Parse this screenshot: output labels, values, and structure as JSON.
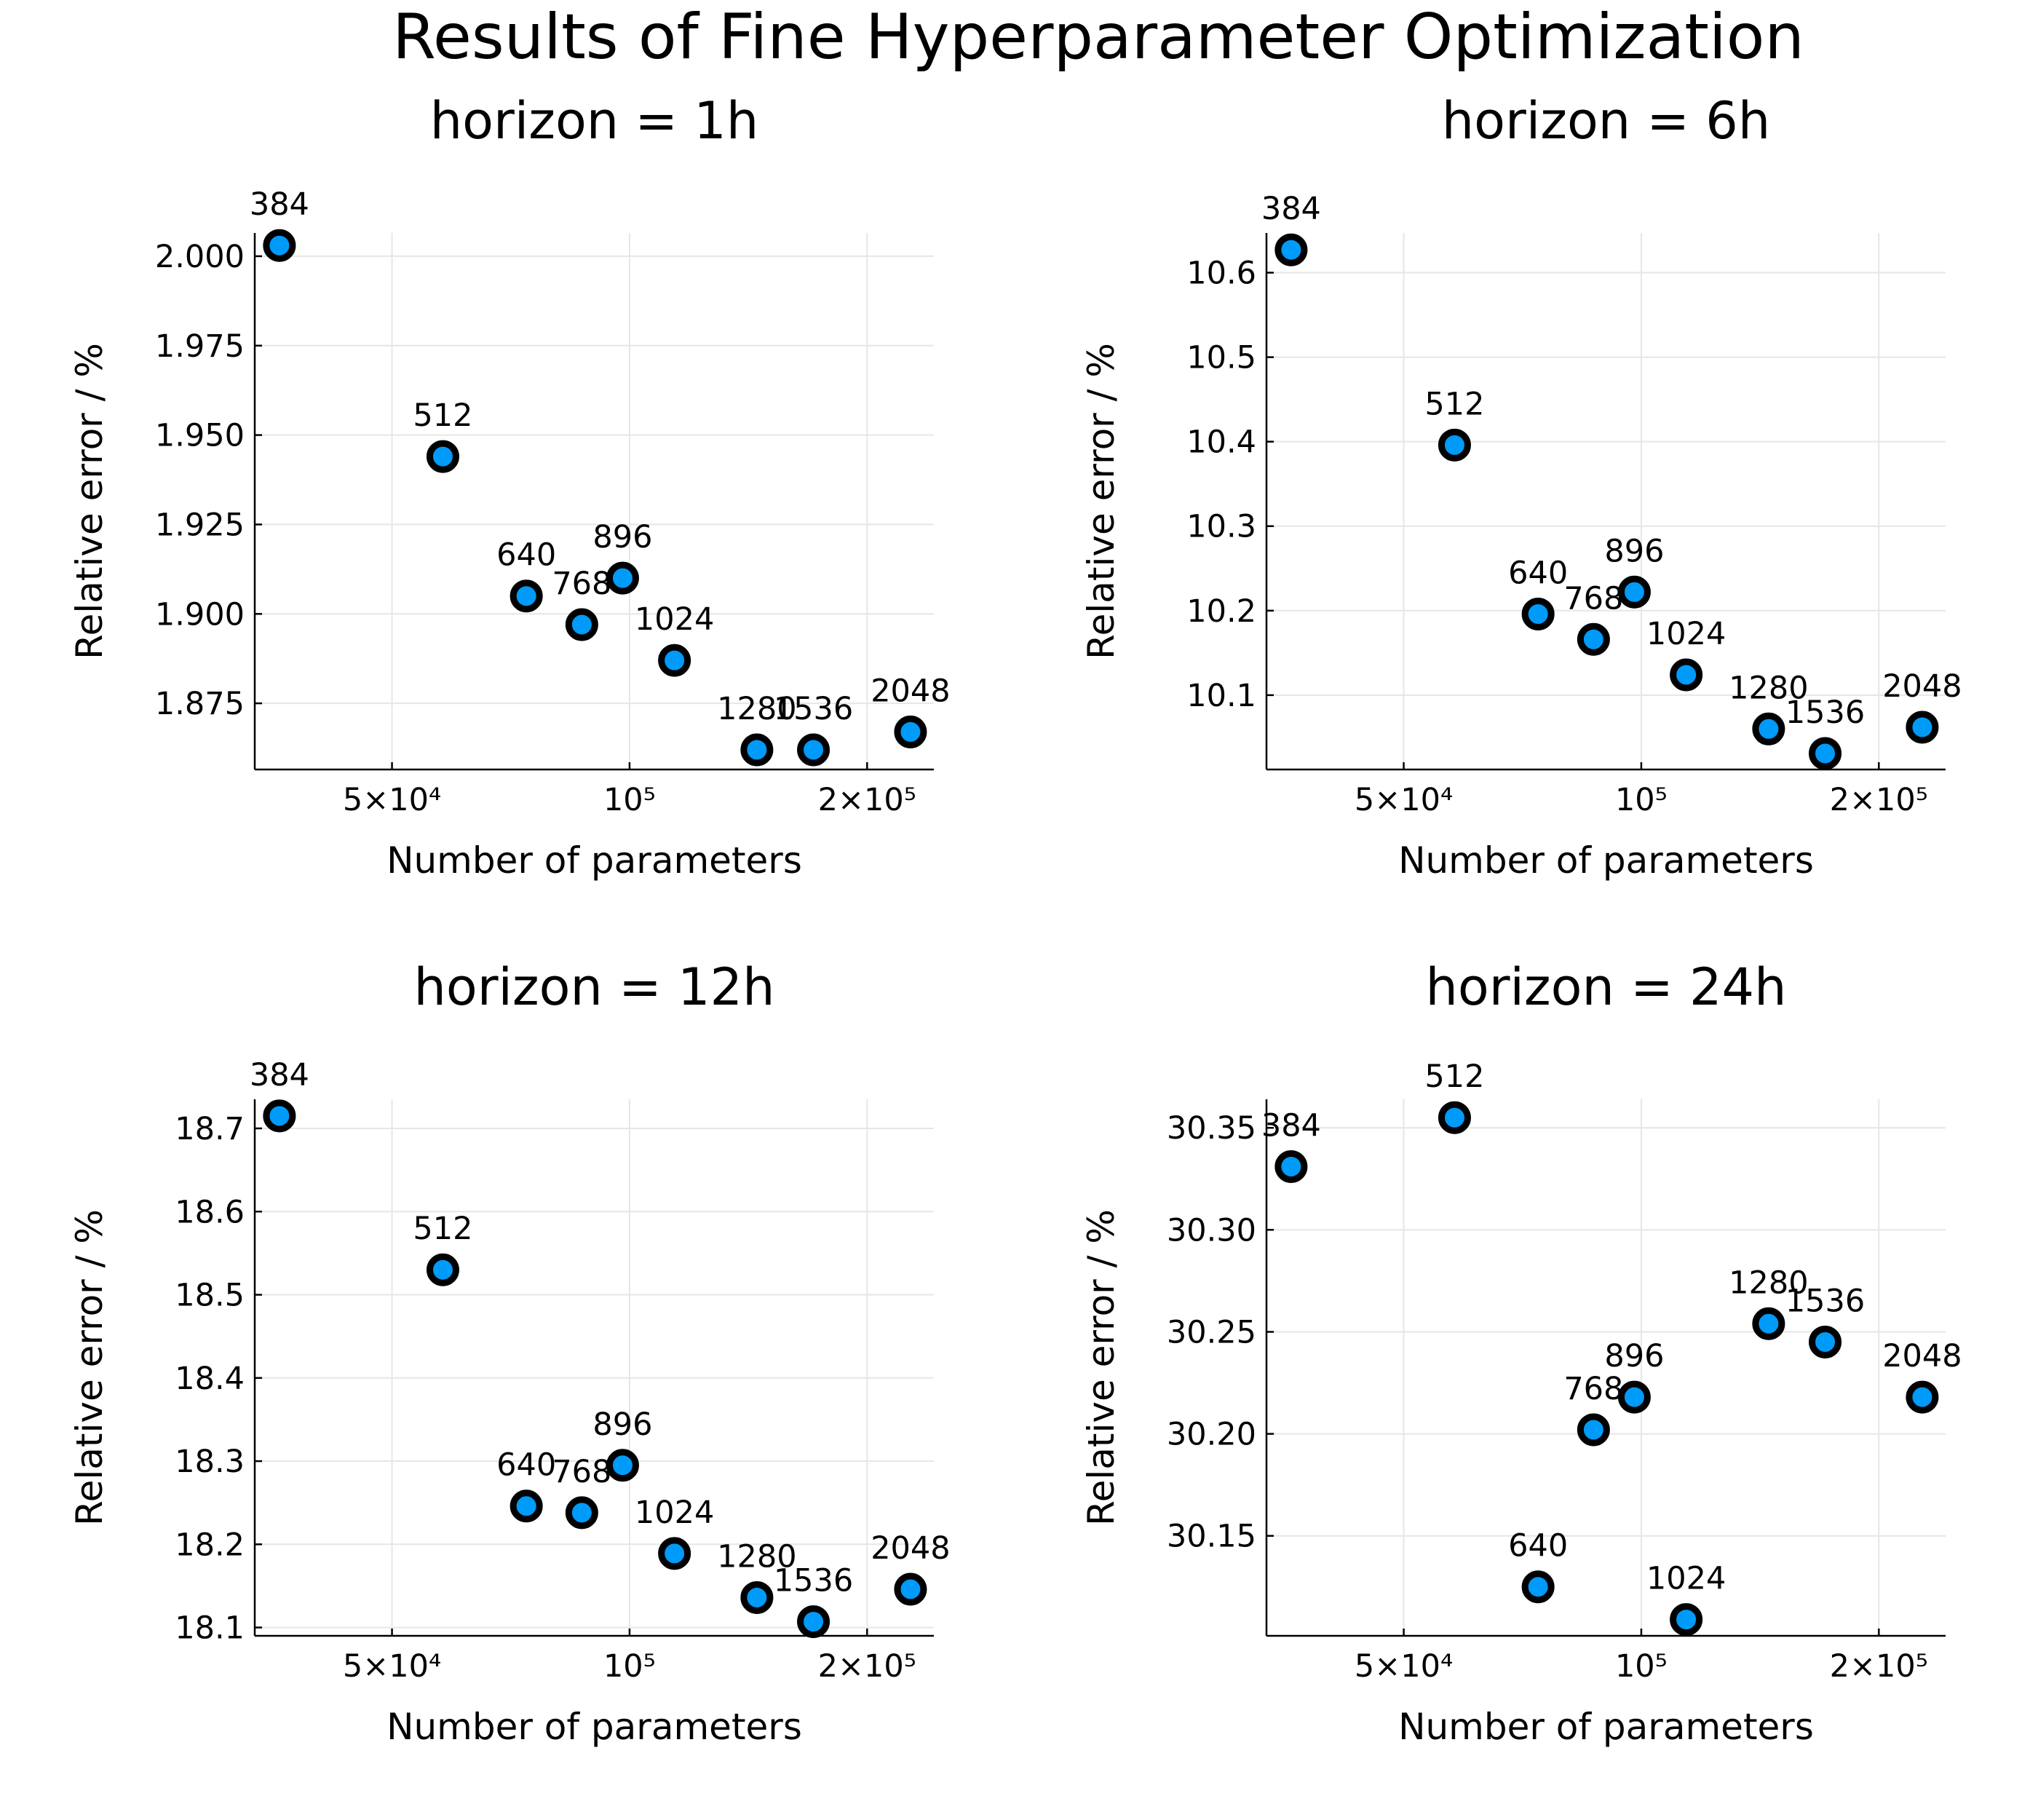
{
  "figure": {
    "title": "Results of Fine Hyperparameter Optimization"
  },
  "chart_data": [
    {
      "type": "scatter",
      "title": "horizon = 1h",
      "xlabel": "Number of parameters",
      "ylabel": "Relative error / %",
      "xscale": "log",
      "xlim": [
        33500,
        243000
      ],
      "ylim": [
        1.8565,
        2.0065
      ],
      "xticks": [
        {
          "value": 50000,
          "label": "5×10⁴"
        },
        {
          "value": 100000,
          "label": "10⁵"
        },
        {
          "value": 200000,
          "label": "2×10⁵"
        }
      ],
      "yticks": [
        {
          "value": 1.875,
          "label": "1.875"
        },
        {
          "value": 1.9,
          "label": "1.900"
        },
        {
          "value": 1.925,
          "label": "1.925"
        },
        {
          "value": 1.95,
          "label": "1.950"
        },
        {
          "value": 1.975,
          "label": "1.975"
        },
        {
          "value": 2.0,
          "label": "2.000"
        }
      ],
      "grid": true,
      "legend": "none",
      "points": [
        {
          "label": "384",
          "x": 36000,
          "y": 2.003
        },
        {
          "label": "512",
          "x": 58000,
          "y": 1.944
        },
        {
          "label": "640",
          "x": 74000,
          "y": 1.905
        },
        {
          "label": "768",
          "x": 87000,
          "y": 1.897
        },
        {
          "label": "896",
          "x": 98000,
          "y": 1.91
        },
        {
          "label": "1024",
          "x": 114000,
          "y": 1.887
        },
        {
          "label": "1280",
          "x": 145000,
          "y": 1.862
        },
        {
          "label": "1536",
          "x": 171000,
          "y": 1.862
        },
        {
          "label": "2048",
          "x": 227000,
          "y": 1.867
        }
      ]
    },
    {
      "type": "scatter",
      "title": "horizon = 6h",
      "xlabel": "Number of parameters",
      "ylabel": "Relative error / %",
      "xscale": "log",
      "xlim": [
        33500,
        243000
      ],
      "ylim": [
        10.012,
        10.647
      ],
      "xticks": [
        {
          "value": 50000,
          "label": "5×10⁴"
        },
        {
          "value": 100000,
          "label": "10⁵"
        },
        {
          "value": 200000,
          "label": "2×10⁵"
        }
      ],
      "yticks": [
        {
          "value": 10.1,
          "label": "10.1"
        },
        {
          "value": 10.2,
          "label": "10.2"
        },
        {
          "value": 10.3,
          "label": "10.3"
        },
        {
          "value": 10.4,
          "label": "10.4"
        },
        {
          "value": 10.5,
          "label": "10.5"
        },
        {
          "value": 10.6,
          "label": "10.6"
        }
      ],
      "grid": true,
      "legend": "none",
      "points": [
        {
          "label": "384",
          "x": 36000,
          "y": 10.627
        },
        {
          "label": "512",
          "x": 58000,
          "y": 10.396
        },
        {
          "label": "640",
          "x": 74000,
          "y": 10.196
        },
        {
          "label": "768",
          "x": 87000,
          "y": 10.166
        },
        {
          "label": "896",
          "x": 98000,
          "y": 10.222
        },
        {
          "label": "1024",
          "x": 114000,
          "y": 10.124
        },
        {
          "label": "1280",
          "x": 145000,
          "y": 10.06
        },
        {
          "label": "1536",
          "x": 171000,
          "y": 10.031
        },
        {
          "label": "2048",
          "x": 227000,
          "y": 10.062
        }
      ]
    },
    {
      "type": "scatter",
      "title": "horizon = 12h",
      "xlabel": "Number of parameters",
      "ylabel": "Relative error / %",
      "xscale": "log",
      "xlim": [
        33500,
        243000
      ],
      "ylim": [
        18.09,
        18.735
      ],
      "xticks": [
        {
          "value": 50000,
          "label": "5×10⁴"
        },
        {
          "value": 100000,
          "label": "10⁵"
        },
        {
          "value": 200000,
          "label": "2×10⁵"
        }
      ],
      "yticks": [
        {
          "value": 18.1,
          "label": "18.1"
        },
        {
          "value": 18.2,
          "label": "18.2"
        },
        {
          "value": 18.3,
          "label": "18.3"
        },
        {
          "value": 18.4,
          "label": "18.4"
        },
        {
          "value": 18.5,
          "label": "18.5"
        },
        {
          "value": 18.6,
          "label": "18.6"
        },
        {
          "value": 18.7,
          "label": "18.7"
        }
      ],
      "grid": true,
      "legend": "none",
      "points": [
        {
          "label": "384",
          "x": 36000,
          "y": 18.715
        },
        {
          "label": "512",
          "x": 58000,
          "y": 18.53
        },
        {
          "label": "640",
          "x": 74000,
          "y": 18.246
        },
        {
          "label": "768",
          "x": 87000,
          "y": 18.238
        },
        {
          "label": "896",
          "x": 98000,
          "y": 18.295
        },
        {
          "label": "1024",
          "x": 114000,
          "y": 18.189
        },
        {
          "label": "1280",
          "x": 145000,
          "y": 18.136
        },
        {
          "label": "1536",
          "x": 171000,
          "y": 18.107
        },
        {
          "label": "2048",
          "x": 227000,
          "y": 18.146
        }
      ]
    },
    {
      "type": "scatter",
      "title": "horizon = 24h",
      "xlabel": "Number of parameters",
      "ylabel": "Relative error / %",
      "xscale": "log",
      "xlim": [
        33500,
        243000
      ],
      "ylim": [
        30.101,
        30.364
      ],
      "xticks": [
        {
          "value": 50000,
          "label": "5×10⁴"
        },
        {
          "value": 100000,
          "label": "10⁵"
        },
        {
          "value": 200000,
          "label": "2×10⁵"
        }
      ],
      "yticks": [
        {
          "value": 30.15,
          "label": "30.15"
        },
        {
          "value": 30.2,
          "label": "30.20"
        },
        {
          "value": 30.25,
          "label": "30.25"
        },
        {
          "value": 30.3,
          "label": "30.30"
        },
        {
          "value": 30.35,
          "label": "30.35"
        }
      ],
      "grid": true,
      "legend": "none",
      "points": [
        {
          "label": "384",
          "x": 36000,
          "y": 30.331
        },
        {
          "label": "512",
          "x": 58000,
          "y": 30.355
        },
        {
          "label": "640",
          "x": 74000,
          "y": 30.125
        },
        {
          "label": "768",
          "x": 87000,
          "y": 30.202
        },
        {
          "label": "896",
          "x": 98000,
          "y": 30.218
        },
        {
          "label": "1024",
          "x": 114000,
          "y": 30.109
        },
        {
          "label": "1280",
          "x": 145000,
          "y": 30.254
        },
        {
          "label": "1536",
          "x": 171000,
          "y": 30.245
        },
        {
          "label": "2048",
          "x": 227000,
          "y": 30.218
        }
      ]
    }
  ]
}
